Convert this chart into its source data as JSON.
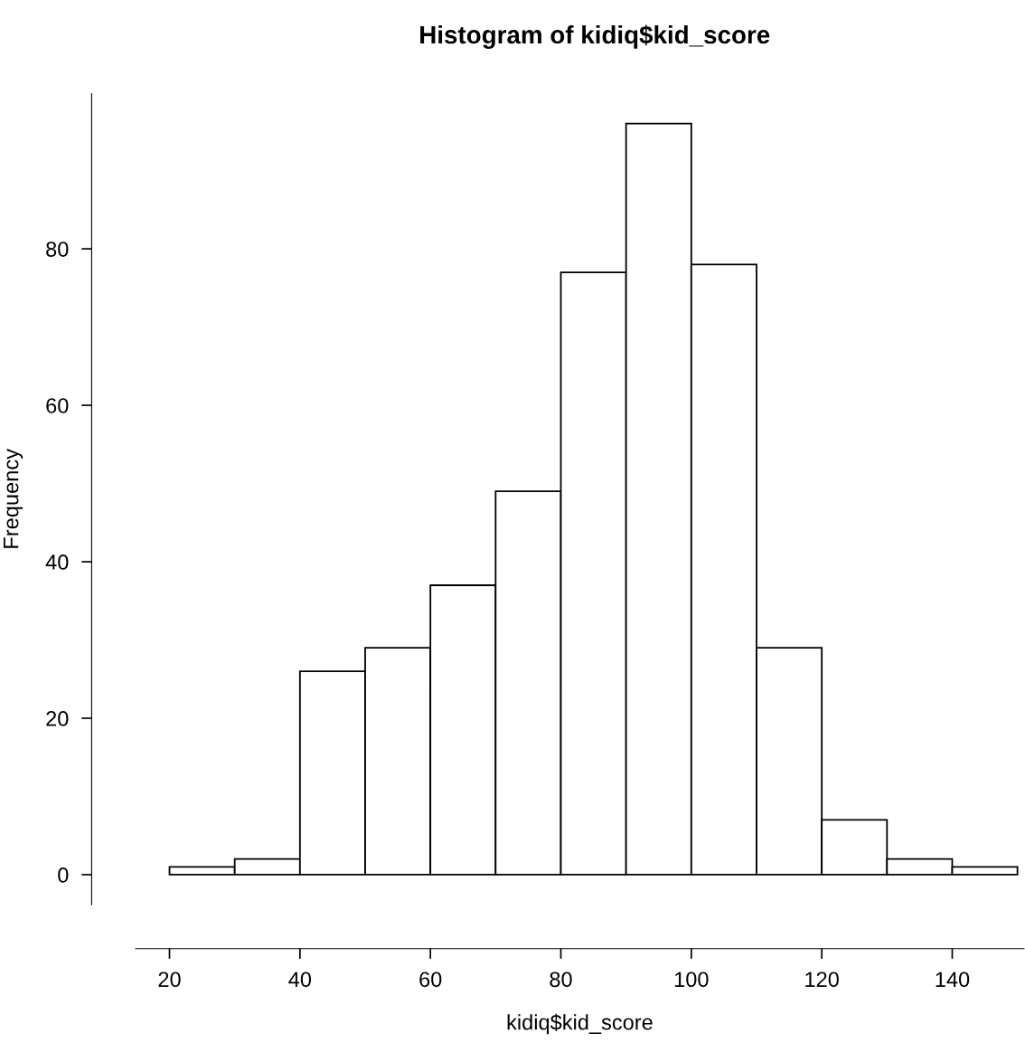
{
  "chart_data": {
    "type": "histogram",
    "title": "Histogram of kidiq$kid_score",
    "xlabel": "kidiq$kid_score",
    "ylabel": "Frequency",
    "bins": [
      20,
      30,
      40,
      50,
      60,
      70,
      80,
      90,
      100,
      110,
      120,
      130,
      140,
      150
    ],
    "values": [
      1,
      2,
      26,
      29,
      37,
      49,
      77,
      96,
      78,
      29,
      7,
      2,
      1
    ],
    "color": "#ffffff",
    "xlim": [
      14.8,
      151
    ],
    "xticks": [
      20,
      40,
      60,
      80,
      100,
      120,
      140
    ],
    "ylim": [
      -3.84,
      99.84
    ],
    "yticks": [
      0,
      20,
      40,
      60,
      80
    ],
    "grid": false
  }
}
